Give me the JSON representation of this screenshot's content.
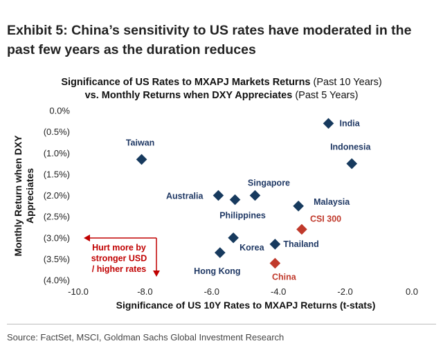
{
  "exhibit_title": "Exhibit 5: China’s sensitivity to US rates have moderated in the past few years as the duration reduces",
  "chart_data": {
    "type": "scatter",
    "title_line1_bold": "Significance of US Rates to MXAPJ Markets Returns",
    "title_line1_normal": " (Past 10 Years)",
    "title_line2_bold": "vs. Monthly Returns when DXY Appreciates",
    "title_line2_normal": " (Past 5 Years)",
    "xlabel": "Significance of US 10Y Rates to MXAPJ Returns (t-stats)",
    "ylabel_line1": "Monthly Return when DXY",
    "ylabel_line2": "Appreciates",
    "xlim": [
      -10,
      0
    ],
    "ylim": [
      -4.0,
      0.0
    ],
    "x_ticks": [
      "-10.0",
      "-8.0",
      "-6.0",
      "-4.0",
      "-2.0",
      "0.0"
    ],
    "x_tick_values": [
      -10,
      -8,
      -6,
      -4,
      -2,
      0
    ],
    "y_ticks": [
      "0.0%",
      "(0.5%)",
      "(1.0%)",
      "(1.5%)",
      "(2.0%)",
      "(2.5%)",
      "(3.0%)",
      "(3.5%)",
      "(4.0%)"
    ],
    "y_tick_values": [
      0,
      -0.5,
      -1.0,
      -1.5,
      -2.0,
      -2.5,
      -3.0,
      -3.5,
      -4.0
    ],
    "grid": false,
    "colors": {
      "default": "#173a5e",
      "highlight": "#c0392b",
      "label_default": "#1f3864",
      "label_highlight": "#c0392b",
      "annotation": "#c00000"
    },
    "points": [
      {
        "name": "India",
        "x": -2.5,
        "y": -0.3,
        "highlight": false
      },
      {
        "name": "Indonesia",
        "x": -1.8,
        "y": -1.25,
        "highlight": false
      },
      {
        "name": "Taiwan",
        "x": -8.1,
        "y": -1.15,
        "highlight": false
      },
      {
        "name": "Singapore",
        "x": -4.7,
        "y": -2.0,
        "highlight": false
      },
      {
        "name": "Australia",
        "x": -5.8,
        "y": -2.0,
        "highlight": false
      },
      {
        "name": "Philippines",
        "x": -5.3,
        "y": -2.1,
        "highlight": false
      },
      {
        "name": "Malaysia",
        "x": -3.4,
        "y": -2.25,
        "highlight": false
      },
      {
        "name": "CSI 300",
        "x": -3.3,
        "y": -2.8,
        "highlight": true
      },
      {
        "name": "Korea",
        "x": -5.35,
        "y": -3.0,
        "highlight": false
      },
      {
        "name": "Thailand",
        "x": -4.1,
        "y": -3.15,
        "highlight": false
      },
      {
        "name": "Hong Kong",
        "x": -5.75,
        "y": -3.35,
        "highlight": false
      },
      {
        "name": "China",
        "x": -4.1,
        "y": -3.6,
        "highlight": true
      }
    ],
    "annotation": {
      "lines": [
        "Hurt more by",
        "stronger USD",
        "/ higher rates"
      ]
    }
  },
  "source": "Source: FactSet, MSCI, Goldman Sachs Global Investment Research"
}
